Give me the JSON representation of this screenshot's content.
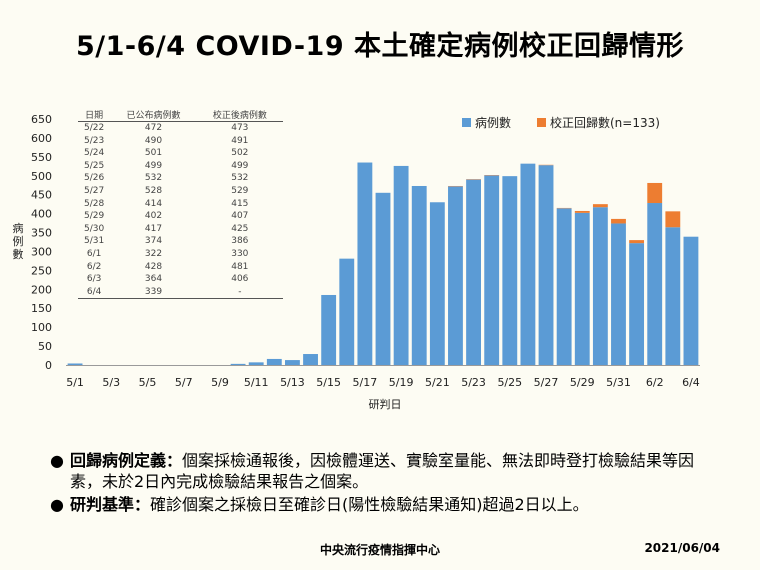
{
  "title": "5/1-6/4 COVID-19 本土確定病例校正回歸情形",
  "table": {
    "headers": [
      "日期",
      "已公布病例數",
      "校正後病例數"
    ],
    "rows": [
      [
        "5/22",
        "472",
        "473"
      ],
      [
        "5/23",
        "490",
        "491"
      ],
      [
        "5/24",
        "501",
        "502"
      ],
      [
        "5/25",
        "499",
        "499"
      ],
      [
        "5/26",
        "532",
        "532"
      ],
      [
        "5/27",
        "528",
        "529"
      ],
      [
        "5/28",
        "414",
        "415"
      ],
      [
        "5/29",
        "402",
        "407"
      ],
      [
        "5/30",
        "417",
        "425"
      ],
      [
        "5/31",
        "374",
        "386"
      ],
      [
        "6/1",
        "322",
        "330"
      ],
      [
        "6/2",
        "428",
        "481"
      ],
      [
        "6/3",
        "364",
        "406"
      ],
      [
        "6/4",
        "339",
        "-"
      ]
    ]
  },
  "notes": [
    {
      "bullet": "●",
      "label": "回歸病例定義：",
      "text": "個案採檢通報後，因檢體運送、實驗室量能、無法即時登打檢驗結果等因素，未於2日內完成檢驗結果報告之個案。"
    },
    {
      "bullet": "●",
      "label": "研判基準：",
      "text": "確診個案之採檢日至確診日(陽性檢驗結果通知)超過2日以上。"
    }
  ],
  "footer": {
    "org": "中央流行疫情指揮中心",
    "date": "2021/06/04"
  },
  "chart_data": {
    "type": "bar",
    "stacked": true,
    "xlabel": "研判日",
    "ylabel": "病例數",
    "ylim": [
      0,
      650
    ],
    "yticks": [
      0,
      50,
      100,
      150,
      200,
      250,
      300,
      350,
      400,
      450,
      500,
      550,
      600,
      650
    ],
    "xtick_labels": [
      "5/1",
      "5/3",
      "5/5",
      "5/7",
      "5/9",
      "5/11",
      "5/13",
      "5/15",
      "5/17",
      "5/19",
      "5/21",
      "5/23",
      "5/25",
      "5/27",
      "5/29",
      "5/31",
      "6/2",
      "6/4"
    ],
    "categories": [
      "5/1",
      "5/2",
      "5/3",
      "5/4",
      "5/5",
      "5/6",
      "5/7",
      "5/8",
      "5/9",
      "5/10",
      "5/11",
      "5/12",
      "5/13",
      "5/14",
      "5/15",
      "5/16",
      "5/17",
      "5/18",
      "5/19",
      "5/20",
      "5/21",
      "5/22",
      "5/23",
      "5/24",
      "5/25",
      "5/26",
      "5/27",
      "5/28",
      "5/29",
      "5/30",
      "5/31",
      "6/1",
      "6/2",
      "6/3",
      "6/4"
    ],
    "series": [
      {
        "name": "病例數",
        "color": "#5b9bd5",
        "values": [
          4,
          0,
          0,
          0,
          0,
          0,
          0,
          0,
          0,
          3,
          7,
          16,
          13,
          29,
          185,
          281,
          535,
          455,
          526,
          473,
          430,
          472,
          490,
          501,
          499,
          532,
          528,
          414,
          402,
          417,
          374,
          322,
          428,
          364,
          339
        ]
      },
      {
        "name": "校正回歸數(n=133)",
        "color": "#ed7d31",
        "values": [
          0,
          0,
          0,
          0,
          0,
          0,
          0,
          0,
          0,
          0,
          0,
          0,
          0,
          0,
          0,
          0,
          0,
          0,
          0,
          0,
          0,
          1,
          1,
          1,
          0,
          0,
          1,
          1,
          5,
          8,
          12,
          8,
          53,
          42,
          0
        ]
      }
    ],
    "legend_position": "top-right",
    "grid": false
  }
}
